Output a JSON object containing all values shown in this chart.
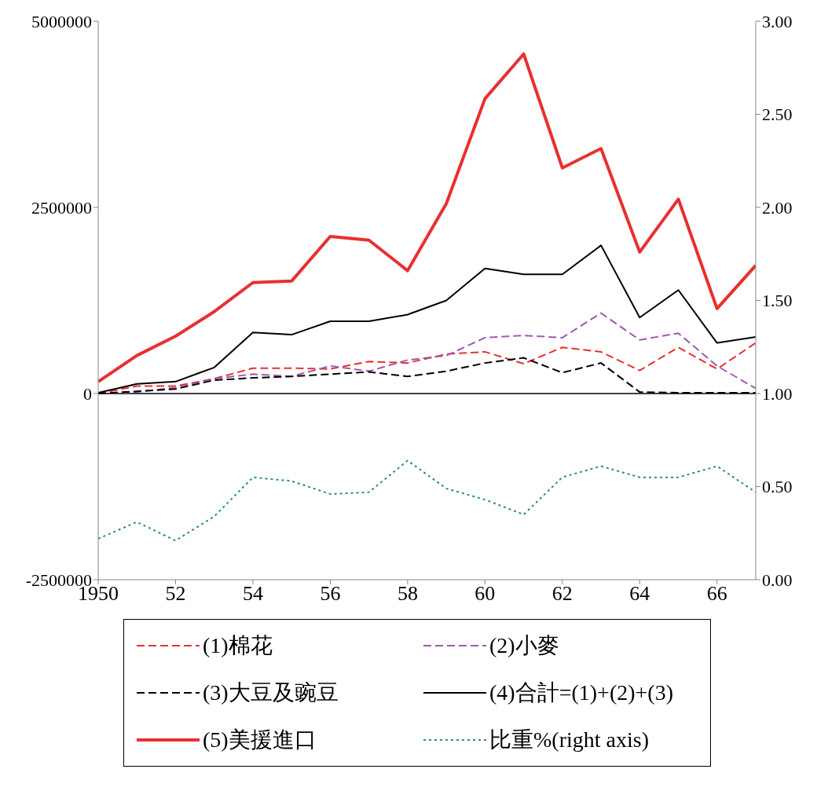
{
  "chart_data": {
    "type": "line",
    "x": [
      1950,
      1951,
      1952,
      1953,
      1954,
      1955,
      1956,
      1957,
      1958,
      1959,
      1960,
      1961,
      1962,
      1963,
      1964,
      1965,
      1966,
      1967
    ],
    "xlim": [
      1950,
      1967
    ],
    "xticks": [
      {
        "value": 1950,
        "label": "1950"
      },
      {
        "value": 1952,
        "label": "52"
      },
      {
        "value": 1954,
        "label": "54"
      },
      {
        "value": 1956,
        "label": "56"
      },
      {
        "value": 1958,
        "label": "58"
      },
      {
        "value": 1960,
        "label": "60"
      },
      {
        "value": 1962,
        "label": "62"
      },
      {
        "value": 1964,
        "label": "64"
      },
      {
        "value": 1966,
        "label": "66"
      }
    ],
    "ylim": [
      -2500000,
      5000000
    ],
    "yticks": [
      -2500000,
      0,
      2500000,
      5000000
    ],
    "y2lim": [
      0,
      3
    ],
    "y2ticks": [
      {
        "value": 0,
        "label": "0.00"
      },
      {
        "value": 0.5,
        "label": "0.50"
      },
      {
        "value": 1,
        "label": "1.00"
      },
      {
        "value": 1.5,
        "label": "1.50"
      },
      {
        "value": 2,
        "label": "2.00"
      },
      {
        "value": 2.5,
        "label": "2.50"
      },
      {
        "value": 3,
        "label": "3.00"
      }
    ],
    "ref_lines": [
      {
        "axis": "y",
        "value": 0,
        "color": "#000000"
      }
    ],
    "legend": "bottom",
    "marker": "none",
    "series": [
      {
        "name": "(1)棉花",
        "color": "#e8302f",
        "line_style": "dashed",
        "values": [
          0,
          100000,
          100000,
          200000,
          340000,
          340000,
          330000,
          430000,
          410000,
          530000,
          560000,
          400000,
          620000,
          560000,
          310000,
          620000,
          330000,
          680000
        ]
      },
      {
        "name": "(2)小麥",
        "color": "#a058b0",
        "line_style": "dashed",
        "values": [
          0,
          20000,
          80000,
          200000,
          260000,
          230000,
          370000,
          300000,
          450000,
          510000,
          750000,
          780000,
          750000,
          1080000,
          720000,
          810000,
          370000,
          70000
        ]
      },
      {
        "name": "(3)大豆及豌豆",
        "color": "#000000",
        "line_style": "dashed",
        "values": [
          0,
          30000,
          60000,
          180000,
          210000,
          230000,
          260000,
          290000,
          230000,
          300000,
          410000,
          480000,
          280000,
          410000,
          20000,
          10000,
          10000,
          10000
        ]
      },
      {
        "name": "(4)合計=(1)+(2)+(3)",
        "color": "#000000",
        "line_style": "solid",
        "values": [
          10000,
          130000,
          160000,
          350000,
          820000,
          790000,
          970000,
          970000,
          1060000,
          1250000,
          1680000,
          1600000,
          1600000,
          1990000,
          1020000,
          1390000,
          680000,
          760000
        ]
      },
      {
        "name": "(5)美援進口",
        "color": "#e8302f",
        "line_style": "solid",
        "values": [
          160000,
          510000,
          770000,
          1100000,
          1490000,
          1510000,
          2110000,
          2060000,
          1650000,
          2550000,
          3960000,
          4560000,
          3030000,
          3290000,
          1900000,
          2610000,
          1140000,
          1720000
        ]
      },
      {
        "name": "比重%(right axis)",
        "color": "#2a8a8a",
        "line_style": "dotted",
        "axis": "y2",
        "values": [
          0.22,
          0.31,
          0.21,
          0.34,
          0.55,
          0.53,
          0.46,
          0.47,
          0.64,
          0.49,
          0.43,
          0.35,
          0.55,
          0.61,
          0.55,
          0.55,
          0.61,
          0.47
        ]
      }
    ]
  }
}
